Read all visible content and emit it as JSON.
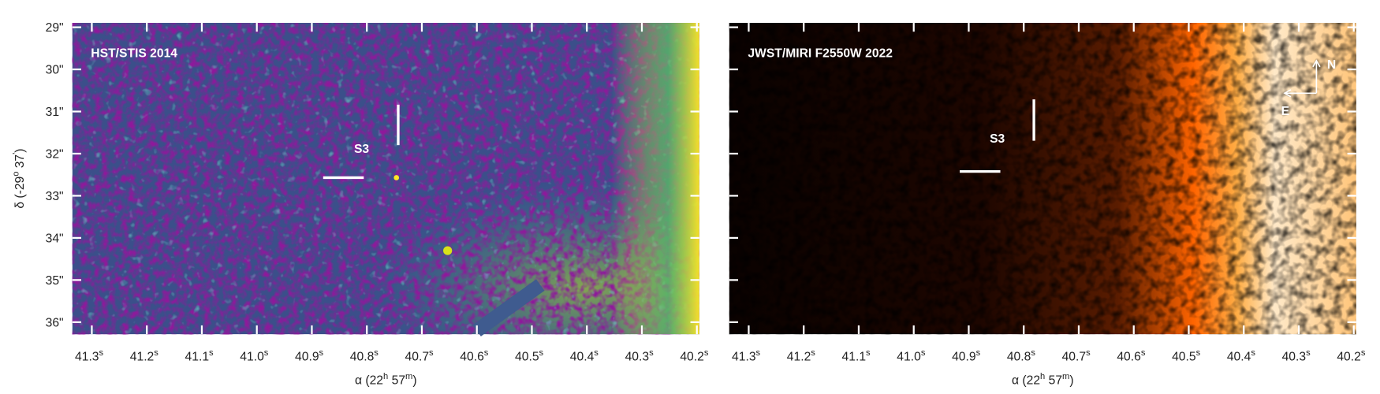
{
  "panels": [
    {
      "label": "HST/STIS 2014",
      "source_label": "S3"
    },
    {
      "label": "JWST/MIRI F2550W 2022",
      "source_label": "S3",
      "compass": {
        "north": "N",
        "east": "E"
      }
    }
  ],
  "x_ticks": [
    {
      "main": "41.3",
      "sup": "s"
    },
    {
      "main": "41.2",
      "sup": "s"
    },
    {
      "main": "41.1",
      "sup": "s"
    },
    {
      "main": "41.0",
      "sup": "s"
    },
    {
      "main": "40.9",
      "sup": "s"
    },
    {
      "main": "40.8",
      "sup": "s"
    },
    {
      "main": "40.7",
      "sup": "s"
    },
    {
      "main": "40.6",
      "sup": "s"
    },
    {
      "main": "40.5",
      "sup": "s"
    },
    {
      "main": "40.4",
      "sup": "s"
    },
    {
      "main": "40.3",
      "sup": "s"
    },
    {
      "main": "40.2",
      "sup": "s"
    }
  ],
  "y_ticks": [
    "29\"",
    "30\"",
    "31\"",
    "32\"",
    "33\"",
    "34\"",
    "35\"",
    "36\""
  ],
  "x_label": {
    "prefix": "α (22",
    "sup1": "h",
    "mid": " 57",
    "sup2": "m",
    "suffix": ")"
  },
  "y_label": {
    "prefix": "δ (-29",
    "sup1": "o",
    "mid": " 37",
    "sup2": "'",
    "suffix": ")"
  }
}
